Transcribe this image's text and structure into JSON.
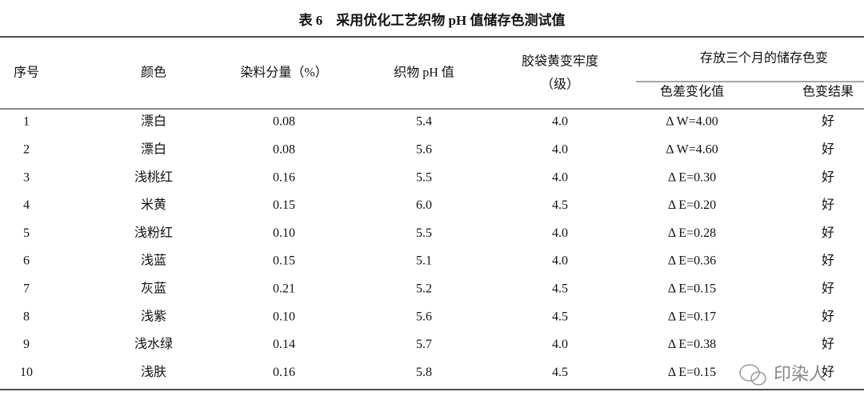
{
  "title": "表 6　采用优化工艺织物 pH 值储存色测试值",
  "table": {
    "header": {
      "index": "序号",
      "color": "颜色",
      "dye": "染料分量（%）",
      "ph": "织物 pH 值",
      "fastness": [
        "胶袋黄变牢度",
        "（级）"
      ],
      "storage": {
        "group": "存放三个月的储存色变",
        "sub": [
          "色差变化值",
          "色变结果"
        ]
      }
    },
    "rows": [
      [
        "1",
        "漂白",
        "0.08",
        "5.4",
        "4.0",
        "Δ W=4.00",
        "好"
      ],
      [
        "2",
        "漂白",
        "0.08",
        "5.6",
        "4.0",
        "Δ W=4.60",
        "好"
      ],
      [
        "3",
        "浅桃红",
        "0.16",
        "5.5",
        "4.0",
        "Δ E=0.30",
        "好"
      ],
      [
        "4",
        "米黄",
        "0.15",
        "6.0",
        "4.5",
        "Δ E=0.20",
        "好"
      ],
      [
        "5",
        "浅粉红",
        "0.10",
        "5.5",
        "4.0",
        "Δ E=0.28",
        "好"
      ],
      [
        "6",
        "浅蓝",
        "0.15",
        "5.1",
        "4.0",
        "Δ E=0.36",
        "好"
      ],
      [
        "7",
        "灰蓝",
        "0.21",
        "5.2",
        "4.5",
        "Δ E=0.15",
        "好"
      ],
      [
        "8",
        "浅紫",
        "0.10",
        "5.6",
        "4.5",
        "Δ E=0.17",
        "好"
      ],
      [
        "9",
        "浅水绿",
        "0.14",
        "5.7",
        "4.0",
        "Δ E=0.38",
        "好"
      ],
      [
        "10",
        "浅肤",
        "0.16",
        "5.8",
        "4.5",
        "Δ E=0.15",
        "好"
      ]
    ]
  },
  "watermark": "印染人"
}
